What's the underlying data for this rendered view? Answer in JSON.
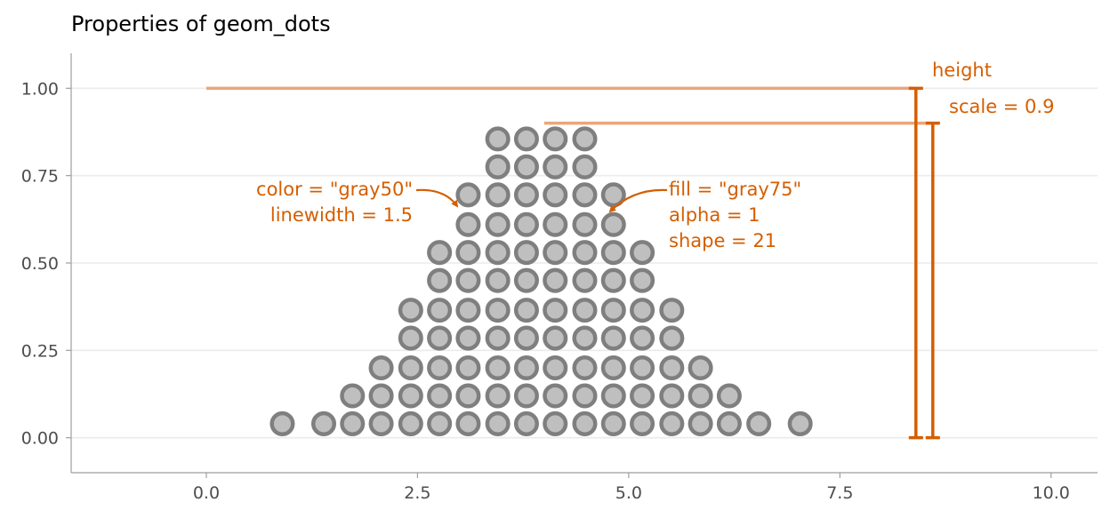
{
  "chart_data": {
    "type": "dotplot",
    "title": "Properties of geom_dots",
    "xlabel": "",
    "ylabel": "",
    "xlim": [
      -1.6,
      10.55
    ],
    "ylim": [
      -0.1,
      1.1
    ],
    "x_ticks": [
      {
        "value": 0,
        "label": "0.0"
      },
      {
        "value": 2.5,
        "label": "2.5"
      },
      {
        "value": 5,
        "label": "5.0"
      },
      {
        "value": 7.5,
        "label": "7.5"
      },
      {
        "value": 10,
        "label": "10.0"
      }
    ],
    "y_ticks": [
      {
        "value": 0,
        "label": "0.00"
      },
      {
        "value": 0.25,
        "label": "0.25"
      },
      {
        "value": 0.5,
        "label": "0.50"
      },
      {
        "value": 0.75,
        "label": "0.75"
      },
      {
        "value": 1,
        "label": "1.00"
      }
    ],
    "grid": "horizontal major",
    "dot_fill": "#bfbfbf",
    "dot_color": "#7f7f7f",
    "dot_radius_x": 0.145,
    "rows": [
      {
        "y": 0.04,
        "x": [
          0.9,
          1.39,
          1.73,
          2.07,
          2.42,
          2.76,
          3.1,
          3.45,
          3.79,
          4.13,
          4.48,
          4.82,
          5.16,
          5.51,
          5.85,
          6.19,
          6.54,
          7.03
        ]
      },
      {
        "y": 0.12,
        "x": [
          1.73,
          2.07,
          2.42,
          2.76,
          3.1,
          3.45,
          3.79,
          4.13,
          4.48,
          4.82,
          5.16,
          5.51,
          5.85,
          6.19
        ]
      },
      {
        "y": 0.2,
        "x": [
          2.07,
          2.42,
          2.76,
          3.1,
          3.45,
          3.79,
          4.13,
          4.48,
          4.82,
          5.16,
          5.51,
          5.85
        ]
      },
      {
        "y": 0.285,
        "x": [
          2.42,
          2.76,
          3.1,
          3.45,
          3.79,
          4.13,
          4.48,
          4.82,
          5.16,
          5.51
        ]
      },
      {
        "y": 0.365,
        "x": [
          2.42,
          2.76,
          3.1,
          3.45,
          3.79,
          4.13,
          4.48,
          4.82,
          5.16,
          5.51
        ]
      },
      {
        "y": 0.45,
        "x": [
          2.76,
          3.1,
          3.45,
          3.79,
          4.13,
          4.48,
          4.82,
          5.16
        ]
      },
      {
        "y": 0.53,
        "x": [
          2.76,
          3.1,
          3.45,
          3.79,
          4.13,
          4.48,
          4.82,
          5.16
        ]
      },
      {
        "y": 0.61,
        "x": [
          3.1,
          3.45,
          3.79,
          4.13,
          4.48,
          4.82
        ]
      },
      {
        "y": 0.695,
        "x": [
          3.1,
          3.45,
          3.79,
          4.13,
          4.48,
          4.82
        ]
      },
      {
        "y": 0.775,
        "x": [
          3.45,
          3.79,
          4.13,
          4.48
        ]
      },
      {
        "y": 0.855,
        "x": [
          3.45,
          3.79,
          4.13,
          4.48
        ]
      }
    ],
    "annotations": {
      "color": "#d55e00",
      "height_line": {
        "y": 1.0,
        "x_start": 0,
        "x_end": 8.4,
        "bar_x": 8.4,
        "y_min": 0,
        "y_max": 1.0
      },
      "scale_line": {
        "y": 0.9,
        "x_start": 4.0,
        "x_end": 8.6,
        "bar_x": 8.6,
        "y_min": 0,
        "y_max": 0.9
      },
      "height_label": "height",
      "scale_label": "scale = 0.9",
      "left_lines": [
        "color = \"gray50\"",
        "linewidth = 1.5"
      ],
      "right_lines": [
        "fill = \"gray75\"",
        "alpha = 1",
        "shape = 21"
      ]
    }
  }
}
